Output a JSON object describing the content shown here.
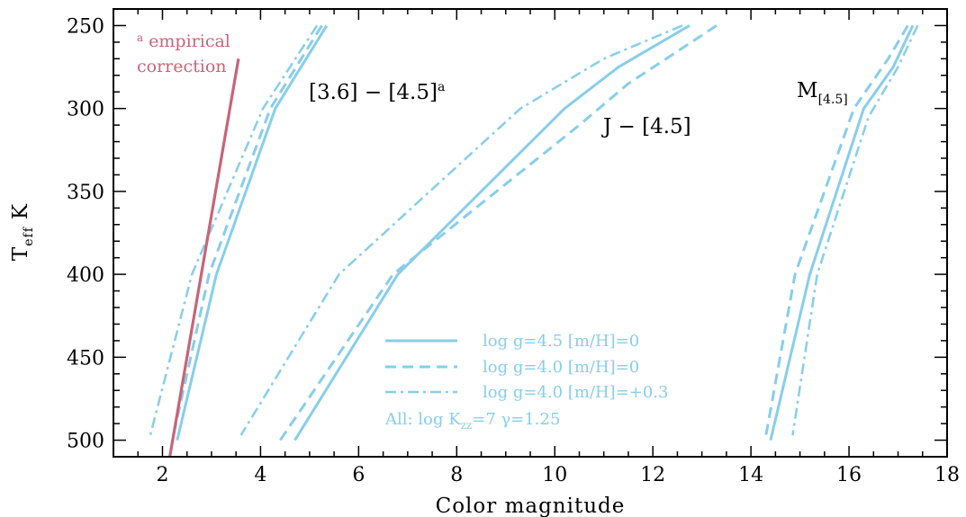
{
  "chart_data": {
    "type": "line",
    "xlabel": "Color magnitude",
    "ylabel_main": "T",
    "ylabel_sub": "eff",
    "ylabel_unit": "K",
    "xlim": [
      1,
      18
    ],
    "ylim": [
      240,
      510
    ],
    "y_inverted": true,
    "xticks": [
      2,
      4,
      6,
      8,
      10,
      12,
      14,
      16,
      18
    ],
    "yticks": [
      250,
      300,
      350,
      400,
      450,
      500
    ],
    "colors": {
      "model": "#87ceeb",
      "empirical": "#c86478"
    },
    "annotations": {
      "color_36_45": "[3.6] − [4.5]",
      "color_36_45_sup": "a",
      "color_j_45": "J − [4.5]",
      "mag_main": "M",
      "mag_sub": "[4.5]",
      "empirical_sup": "a",
      "empirical_line1": "empirical",
      "empirical_line2": "correction"
    },
    "legend": {
      "entries": [
        {
          "label": "log g=4.5 [m/H]=0",
          "style": "solid"
        },
        {
          "label": "log g=4.0 [m/H]=0",
          "style": "dashed"
        },
        {
          "label": "log g=4.0 [m/H]=+0.3",
          "style": "dashdot"
        }
      ],
      "note_prefix": "All: log K",
      "note_sub": "zz",
      "note_suffix": "=7 γ=1.25"
    },
    "series": [
      {
        "group": "[3.6]-[4.5]",
        "style": "solid",
        "x": [
          5.35,
          4.3,
          3.1,
          2.3
        ],
        "y": [
          250,
          300,
          400,
          500
        ]
      },
      {
        "group": "[3.6]-[4.5]",
        "style": "dashed",
        "x": [
          5.25,
          4.2,
          2.95,
          2.2
        ],
        "y": [
          250,
          300,
          400,
          500
        ]
      },
      {
        "group": "[3.6]-[4.5]",
        "style": "dashdot",
        "x": [
          5.15,
          4.05,
          2.6,
          1.75
        ],
        "y": [
          250,
          300,
          400,
          497
        ]
      },
      {
        "group": "J-[4.5]",
        "style": "solid",
        "x": [
          12.75,
          11.3,
          10.2,
          6.8,
          4.7
        ],
        "y": [
          250,
          275,
          300,
          400,
          500
        ]
      },
      {
        "group": "J-[4.5]",
        "style": "dashed",
        "x": [
          13.3,
          11.5,
          10.5,
          6.7,
          4.4
        ],
        "y": [
          250,
          285,
          310,
          400,
          500
        ]
      },
      {
        "group": "J-[4.5]",
        "style": "dashdot",
        "x": [
          12.6,
          11.0,
          9.3,
          5.6,
          3.6
        ],
        "y": [
          250,
          270,
          300,
          400,
          497
        ]
      },
      {
        "group": "M[4.5]",
        "style": "solid",
        "x": [
          17.3,
          16.9,
          16.3,
          15.2,
          14.4
        ],
        "y": [
          250,
          275,
          300,
          400,
          500
        ]
      },
      {
        "group": "M[4.5]",
        "style": "dashed",
        "x": [
          17.2,
          16.8,
          16.1,
          14.9,
          14.3
        ],
        "y": [
          250,
          270,
          300,
          400,
          498
        ]
      },
      {
        "group": "M[4.5]",
        "style": "dashdot",
        "x": [
          17.4,
          17.0,
          16.4,
          15.35,
          14.85
        ],
        "y": [
          250,
          275,
          305,
          400,
          497
        ]
      },
      {
        "group": "empirical",
        "style": "empirical",
        "x": [
          3.55,
          2.15
        ],
        "y": [
          270,
          510
        ]
      }
    ]
  }
}
